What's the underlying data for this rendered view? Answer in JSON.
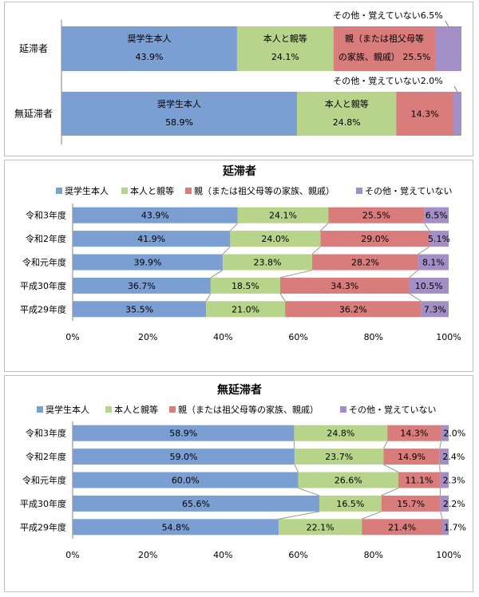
{
  "colors": {
    "student": "#7b9fd3",
    "self_parent": "#b8d48a",
    "parent": "#d97c7c",
    "other": "#a38fc6",
    "connector": "#7f7f7f",
    "axis": "#808080"
  },
  "chart_data": [
    {
      "type": "bar",
      "orientation": "horizontal-stacked",
      "categories": [
        "延滞者",
        "無延滞者"
      ],
      "series": [
        {
          "name": "奨学生本人",
          "values": [
            43.9,
            58.9
          ]
        },
        {
          "name": "本人と親等",
          "values": [
            24.1,
            24.8
          ]
        },
        {
          "name": "親（または祖父母等の家族、親戚）",
          "values": [
            25.5,
            14.3
          ]
        },
        {
          "name": "その他・覚えていない",
          "values": [
            6.5,
            2.0
          ]
        }
      ],
      "segment_labels": [
        [
          "奨学生本人",
          "本人と親等",
          "親（または祖父母等の家族、親戚）",
          ""
        ],
        [
          "奨学生本人",
          "本人と親等",
          "",
          ""
        ]
      ],
      "parent_label_lines": [
        "親（または祖父母等",
        "の家族、親戚）"
      ],
      "callouts": [
        "その他・覚えていない6.5%",
        "その他・覚えていない2.0%"
      ],
      "xlim": [
        0,
        100
      ]
    },
    {
      "type": "bar",
      "orientation": "horizontal-stacked",
      "title": "延滞者",
      "categories": [
        "令和3年度",
        "令和2年度",
        "令和元年度",
        "平成30年度",
        "平成29年度"
      ],
      "series": [
        {
          "name": "奨学生本人",
          "values": [
            43.9,
            41.9,
            39.9,
            36.7,
            35.5
          ]
        },
        {
          "name": "本人と親等",
          "values": [
            24.1,
            24.0,
            23.8,
            18.5,
            21.0
          ]
        },
        {
          "name": "親（または祖父母等の家族、親戚）",
          "values": [
            25.5,
            29.0,
            28.2,
            34.3,
            36.2
          ]
        },
        {
          "name": "その他・覚えていない",
          "values": [
            6.5,
            5.1,
            8.1,
            10.5,
            7.3
          ]
        }
      ],
      "xticks": [
        "0%",
        "20%",
        "40%",
        "60%",
        "80%",
        "100%"
      ],
      "legend": "top",
      "xlim": [
        0,
        100
      ]
    },
    {
      "type": "bar",
      "orientation": "horizontal-stacked",
      "title": "無延滞者",
      "categories": [
        "令和3年度",
        "令和2年度",
        "令和元年度",
        "平成30年度",
        "平成29年度"
      ],
      "series": [
        {
          "name": "奨学生本人",
          "values": [
            58.9,
            59.0,
            60.0,
            65.6,
            54.8
          ]
        },
        {
          "name": "本人と親等",
          "values": [
            24.8,
            23.7,
            26.6,
            16.5,
            22.1
          ]
        },
        {
          "name": "親（または祖父母等の家族、親戚）",
          "values": [
            14.3,
            14.9,
            11.1,
            15.7,
            21.4
          ]
        },
        {
          "name": "その他・覚えていない",
          "values": [
            2.0,
            2.4,
            2.3,
            2.2,
            1.7
          ]
        }
      ],
      "xticks": [
        "0%",
        "20%",
        "40%",
        "60%",
        "80%",
        "100%"
      ],
      "legend": "top",
      "xlim": [
        0,
        100
      ]
    }
  ]
}
